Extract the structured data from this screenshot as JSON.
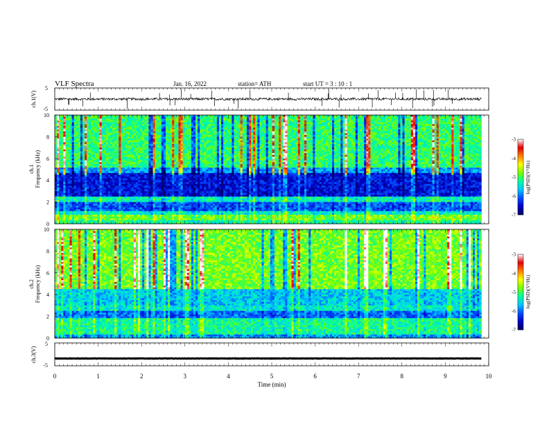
{
  "header": {
    "title": "VLF  Spectra",
    "date": "Jan. 16, 2022",
    "station": "station= ATH",
    "start": "start  UT  =   3  : 10 : 1"
  },
  "chart_data": [
    {
      "type": "line",
      "ylabel": "ch.1(V)",
      "ylim": [
        -5,
        5
      ],
      "yticks": [
        "5",
        "-5"
      ],
      "xlim": [
        0,
        10
      ],
      "baseline_level": 0,
      "color": "#000000"
    },
    {
      "type": "heatmap",
      "ylabel_top": "ch.1",
      "ylabel": "Frequency  (kHz)",
      "ylim": [
        0,
        10
      ],
      "yticks": [
        0,
        2,
        4,
        6,
        8,
        10
      ],
      "xlim": [
        0,
        10
      ],
      "data_end_min": 9.83,
      "colorbar": {
        "label": "log(PSD)(V²/Hz)",
        "range": [
          -7,
          -3
        ],
        "ticks": [
          "-3",
          "-4",
          "-5",
          "-6",
          "-7"
        ],
        "colormap": [
          "#000060",
          "#0000c8",
          "#0050ff",
          "#00c8ff",
          "#00ffa0",
          "#78ff00",
          "#ffff00",
          "#ff8000",
          "#e00000",
          "#ffffff"
        ]
      },
      "bands_khz": [
        {
          "from": 0.0,
          "to": 0.3,
          "level": 0.45
        },
        {
          "from": 0.3,
          "to": 0.8,
          "level": 0.55
        },
        {
          "from": 0.8,
          "to": 1.2,
          "level": 0.4
        },
        {
          "from": 1.2,
          "to": 2.0,
          "level": 0.22
        },
        {
          "from": 2.0,
          "to": 2.5,
          "level": 0.42
        },
        {
          "from": 2.5,
          "to": 4.7,
          "level": 0.14
        },
        {
          "from": 4.7,
          "to": 5.2,
          "level": 0.3
        },
        {
          "from": 5.2,
          "to": 10.0,
          "level": 0.48
        }
      ]
    },
    {
      "type": "heatmap",
      "ylabel_top": "ch.2",
      "ylabel": "Frequency  (kHz)",
      "ylim": [
        0,
        10
      ],
      "yticks": [
        0,
        2,
        4,
        6,
        8,
        10
      ],
      "xlim": [
        0,
        10
      ],
      "data_end_min": 9.83,
      "colorbar": {
        "label": "log(PSD)(V²/Hz)",
        "range": [
          -7,
          -3
        ],
        "ticks": [
          "-3",
          "-4",
          "-5",
          "-6",
          "-7"
        ],
        "colormap": [
          "#000060",
          "#0000c8",
          "#0050ff",
          "#00c8ff",
          "#00ffa0",
          "#78ff00",
          "#ffff00",
          "#ff8000",
          "#e00000",
          "#ffffff"
        ]
      },
      "bands_khz": [
        {
          "from": 0.0,
          "to": 0.4,
          "level": 0.3
        },
        {
          "from": 0.4,
          "to": 1.8,
          "level": 0.45
        },
        {
          "from": 1.8,
          "to": 2.5,
          "level": 0.25
        },
        {
          "from": 2.5,
          "to": 3.0,
          "level": 0.4
        },
        {
          "from": 3.0,
          "to": 4.5,
          "level": 0.35
        },
        {
          "from": 4.5,
          "to": 10.0,
          "level": 0.55
        }
      ]
    },
    {
      "type": "line",
      "ylabel": "ch.3(V)",
      "ylim": [
        -5,
        5
      ],
      "yticks": [
        "5",
        "-5"
      ],
      "xlim": [
        0,
        10
      ],
      "baseline_level": -1.8,
      "color": "#000000"
    }
  ],
  "xaxis": {
    "label": "Time  (min)",
    "ticks": [
      "0",
      "1",
      "2",
      "3",
      "4",
      "5",
      "6",
      "7",
      "8",
      "9",
      "10"
    ]
  }
}
